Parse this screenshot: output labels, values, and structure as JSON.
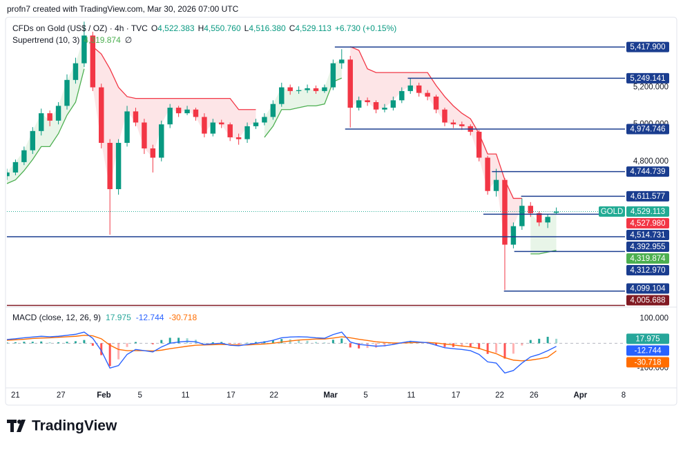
{
  "watermark": "profn7 created with TradingView.com, Mar 30, 2026 07:00 UTC",
  "footer": {
    "brand": "TradingView"
  },
  "chart_data": [
    {
      "type": "candlestick",
      "symbol": "CFDs on Gold (US$ / OZ) · 4h · TVC",
      "ohlc": [
        {
          "key": "O",
          "value": 4522.383,
          "label": "4,522.383"
        },
        {
          "key": "H",
          "value": 4550.76,
          "label": "4,550.760"
        },
        {
          "key": "L",
          "value": 4516.38,
          "label": "4,516.380"
        },
        {
          "key": "C",
          "value": 4529.113,
          "label": "4,529.113"
        }
      ],
      "change": {
        "value": 6.73,
        "label": "+6.730 (+0.15%)"
      },
      "up_color": "#089981",
      "down_color": "#f23645",
      "open": [
        4720,
        4740,
        4796,
        4860,
        4964,
        5060,
        5020,
        5100,
        5240,
        5330,
        5480,
        5200,
        4900,
        4650,
        4900,
        5070,
        5010,
        4870,
        4820,
        5000,
        5090,
        5060,
        5080,
        5040,
        4950,
        5010,
        5000,
        4930,
        4920,
        4990,
        5010,
        5040,
        5110,
        5200,
        5180,
        5185,
        5195,
        5180,
        5200,
        5330,
        5350,
        5090,
        5130,
        5120,
        5080,
        5090,
        5130,
        5180,
        5210,
        5170,
        5150,
        5080,
        5010,
        5000,
        4990,
        4960,
        4820,
        4640,
        4700,
        4350,
        4450,
        4560,
        4520,
        4470,
        4522.383
      ],
      "high": [
        4760,
        4810,
        4880,
        4985,
        5085,
        5075,
        5120,
        5270,
        5360,
        5555,
        5500,
        5220,
        4920,
        4920,
        5100,
        5090,
        5030,
        4890,
        5020,
        5110,
        5100,
        5100,
        5090,
        5060,
        5030,
        5025,
        5010,
        4950,
        5010,
        5030,
        5060,
        5130,
        5225,
        5215,
        5205,
        5215,
        5210,
        5215,
        5350,
        5406,
        5370,
        5150,
        5145,
        5130,
        5110,
        5150,
        5200,
        5249,
        5225,
        5185,
        5160,
        5090,
        5025,
        5015,
        5000,
        4970,
        4830,
        4760,
        4710,
        4470,
        4600,
        4580,
        4530,
        4515,
        4550.76
      ],
      "low": [
        4700,
        4725,
        4780,
        4840,
        4940,
        4990,
        5000,
        5080,
        5220,
        5310,
        5180,
        4870,
        4404,
        4620,
        4880,
        4990,
        4840,
        4740,
        4800,
        4980,
        5040,
        5050,
        5020,
        4930,
        4935,
        4980,
        4910,
        4890,
        4900,
        4975,
        4995,
        5025,
        5095,
        5160,
        5165,
        5170,
        5165,
        5170,
        5185,
        5300,
        4983,
        5075,
        5100,
        5060,
        5065,
        5075,
        5115,
        5165,
        5150,
        5130,
        5060,
        4990,
        4980,
        4970,
        4940,
        4800,
        4620,
        4610,
        4105,
        4330,
        4430,
        4500,
        4450,
        4440,
        4516.38
      ],
      "close": [
        4740,
        4796,
        4860,
        4964,
        5060,
        5020,
        5100,
        5240,
        5330,
        5480,
        5200,
        4900,
        4650,
        4900,
        5070,
        5010,
        4870,
        4820,
        5000,
        5090,
        5060,
        5080,
        5040,
        4950,
        5010,
        5000,
        4930,
        4920,
        4990,
        5010,
        5040,
        5110,
        5200,
        5180,
        5185,
        5195,
        5180,
        5200,
        5330,
        5350,
        5090,
        5130,
        5120,
        5080,
        5090,
        5130,
        5180,
        5210,
        5170,
        5150,
        5080,
        5010,
        5000,
        4990,
        4960,
        4820,
        4640,
        4700,
        4350,
        4450,
        4560,
        4520,
        4470,
        4500,
        4529.113
      ],
      "supertrend": {
        "name": "Supertrend (10, 3)",
        "value_label": "4,319.874",
        "suffix": "∅",
        "up_color": "#4caf50",
        "down_color": "#f23645",
        "values": [
          4680,
          4700,
          4750,
          4810,
          4880,
          4880,
          4950,
          5050,
          5120,
          5300,
          5420,
          5380,
          5300,
          5200,
          5150,
          5140,
          5140,
          5140,
          5140,
          5140,
          5140,
          5140,
          5140,
          5140,
          5140,
          5140,
          5140,
          5080,
          5080,
          5080,
          4930,
          4990,
          5080,
          5080,
          5090,
          5100,
          5100,
          5110,
          5230,
          5250,
          5420,
          5400,
          5300,
          5280,
          5280,
          5280,
          5280,
          5280,
          5280,
          5280,
          5210,
          5150,
          5100,
          5060,
          5030,
          4950,
          4840,
          4840,
          4700,
          4600,
          4600,
          4300,
          4300,
          4310,
          4319.874
        ]
      },
      "levels": [
        {
          "value": 5417.9,
          "label": "5,417.900",
          "from": 38.2,
          "color": "#1a3d8f"
        },
        {
          "value": 5249.141,
          "label": "5,249.141",
          "from": 46.7,
          "color": "#1a3d8f"
        },
        {
          "value": 4974.746,
          "label": "4,974.746",
          "from": 39.4,
          "color": "#1a3d8f"
        },
        {
          "value": 4744.739,
          "label": "4,744.739",
          "from": 56.5,
          "color": "#1a3d8f"
        },
        {
          "value": 4611.577,
          "label": "4,611.577",
          "from": 59.9,
          "color": "#1a3d8f"
        },
        {
          "value": 4514.731,
          "label": "4,514.731",
          "from": 55.5,
          "color": "#1a3d8f"
        },
        {
          "value": 4392.955,
          "label": "4,392.955",
          "from": 0,
          "color": "#1a3d8f"
        },
        {
          "value": 4312.97,
          "label": "4,312.970",
          "from": 59.1,
          "color": "#1a3d8f"
        },
        {
          "value": 4099.104,
          "label": "4,099.104",
          "from": 57.9,
          "color": "#1a3d8f"
        },
        {
          "value": 4005.688,
          "label": "4,005.688",
          "from": 0,
          "color": "#801922"
        }
      ],
      "last": {
        "name": "GOLD",
        "value": 4529.113,
        "label": "4,529.113",
        "color": "#22ab94"
      },
      "bid": {
        "value": 4527.98,
        "label": "4,527.980",
        "color": "#f23645"
      },
      "xlim": [
        0,
        72
      ],
      "xticks": [
        {
          "value": 1.0,
          "label": "21"
        },
        {
          "value": 6.3,
          "label": "27"
        },
        {
          "value": 11.3,
          "label": "Feb"
        },
        {
          "value": 15.5,
          "label": "5"
        },
        {
          "value": 20.8,
          "label": "11"
        },
        {
          "value": 26.1,
          "label": "17"
        },
        {
          "value": 31.1,
          "label": "22"
        },
        {
          "value": 37.7,
          "label": "Mar"
        },
        {
          "value": 41.8,
          "label": "5"
        },
        {
          "value": 47.1,
          "label": "11"
        },
        {
          "value": 52.3,
          "label": "17"
        },
        {
          "value": 57.4,
          "label": "22"
        },
        {
          "value": 61.4,
          "label": "26"
        },
        {
          "value": 66.8,
          "label": "Apr"
        },
        {
          "value": 72,
          "label": "8"
        }
      ],
      "ylim": [
        4020,
        5560
      ],
      "yticks": [
        {
          "value": 4800,
          "label": "4,800.000"
        },
        {
          "value": 5000,
          "label": "5,000.000"
        },
        {
          "value": 5200,
          "label": "5,200.000"
        }
      ]
    },
    {
      "type": "macd",
      "title": "MACD (close, 12, 26, 9)",
      "ylim": [
        -180,
        140
      ],
      "yticks": [
        {
          "value": 100,
          "label": "100.000"
        },
        {
          "value": -100,
          "label": "-100.000"
        }
      ],
      "histogram": {
        "color": "#26a69a",
        "neg_color": "#ff5252",
        "values": [
          3,
          4,
          6,
          6,
          7,
          4,
          4,
          6,
          8,
          13,
          -10,
          -48,
          -92,
          -65,
          -15,
          5,
          0,
          -4,
          13,
          22,
          22,
          20,
          14,
          2,
          4,
          5,
          -2,
          -3,
          2,
          5,
          8,
          12,
          17,
          16,
          13,
          10,
          5,
          3,
          14,
          19,
          -17,
          -21,
          -19,
          -18,
          -13,
          -6,
          1,
          6,
          2,
          -1,
          -9,
          -15,
          -15,
          -14,
          -15,
          -24,
          -43,
          -38,
          -62,
          -42,
          -9,
          13,
          18,
          26,
          17.975
        ]
      },
      "macd": {
        "color": "#2962ff",
        "values": [
          15,
          18,
          22,
          25,
          28,
          26,
          28,
          32,
          36,
          45,
          20,
          -30,
          -100,
          -90,
          -45,
          -25,
          -30,
          -35,
          -15,
          0,
          5,
          8,
          6,
          -5,
          -2,
          0,
          -8,
          -10,
          -5,
          0,
          5,
          12,
          22,
          25,
          26,
          25,
          22,
          20,
          35,
          45,
          5,
          -5,
          -8,
          -12,
          -10,
          -5,
          2,
          8,
          5,
          2,
          -8,
          -18,
          -22,
          -25,
          -30,
          -45,
          -75,
          -80,
          -120,
          -110,
          -80,
          -55,
          -45,
          -30,
          -12.744
        ]
      },
      "signal": {
        "color": "#ff6d00",
        "values": [
          12,
          14,
          16,
          19,
          21,
          22,
          24,
          26,
          28,
          32,
          30,
          18,
          -8,
          -25,
          -30,
          -30,
          -30,
          -31,
          -28,
          -22,
          -17,
          -12,
          -8,
          -7,
          -6,
          -5,
          -6,
          -7,
          -7,
          -5,
          -3,
          0,
          5,
          9,
          13,
          15,
          17,
          17,
          21,
          26,
          22,
          16,
          11,
          6,
          3,
          1,
          1,
          2,
          3,
          3,
          1,
          -3,
          -7,
          -11,
          -15,
          -21,
          -32,
          -42,
          -58,
          -68,
          -71,
          -68,
          -63,
          -56,
          -30.718
        ]
      }
    }
  ]
}
